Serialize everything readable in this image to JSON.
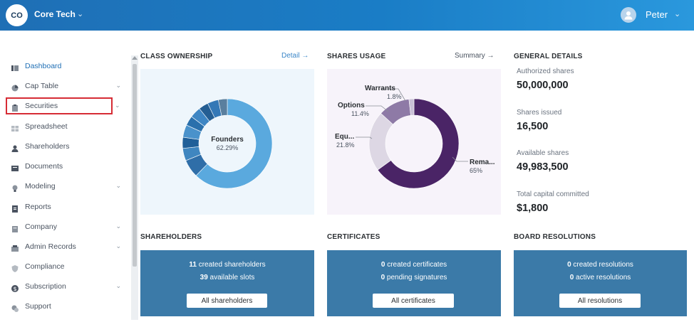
{
  "header": {
    "org_initials": "CO",
    "org_name": "Core Tech",
    "user_name": "Peter"
  },
  "sidebar": {
    "items": [
      {
        "label": "Dashboard",
        "icon": "dashboard-icon"
      },
      {
        "label": "Cap Table",
        "icon": "pie-icon"
      },
      {
        "label": "Securities",
        "icon": "clipboard-icon"
      },
      {
        "label": "Spreadsheet",
        "icon": "table-icon"
      },
      {
        "label": "Shareholders",
        "icon": "person-icon"
      },
      {
        "label": "Documents",
        "icon": "document-icon"
      },
      {
        "label": "Modeling",
        "icon": "bulb-icon"
      },
      {
        "label": "Reports",
        "icon": "report-icon"
      },
      {
        "label": "Company",
        "icon": "building-icon"
      },
      {
        "label": "Admin Records",
        "icon": "records-icon"
      },
      {
        "label": "Compliance",
        "icon": "shield-icon"
      },
      {
        "label": "Subscription",
        "icon": "dollar-icon"
      },
      {
        "label": "Support",
        "icon": "support-icon"
      }
    ]
  },
  "class_ownership": {
    "title": "CLASS OWNERSHIP",
    "link": "Detail →",
    "center_label": "Founders",
    "center_pct": "62.29%"
  },
  "shares_usage": {
    "title": "SHARES USAGE",
    "link": "Summary →",
    "slices": [
      {
        "label": "Warrants",
        "pct": "1.8%"
      },
      {
        "label": "Options",
        "pct": "11.4%"
      },
      {
        "label": "Equ...",
        "pct": "21.8%"
      },
      {
        "label": "Rema...",
        "pct": "65%"
      }
    ]
  },
  "general_details": {
    "title": "GENERAL DETAILS",
    "items": [
      {
        "label": "Authorized shares",
        "value": "50,000,000"
      },
      {
        "label": "Shares issued",
        "value": "16,500"
      },
      {
        "label": "Available shares",
        "value": "49,983,500"
      },
      {
        "label": "Total capital committed",
        "value": "$1,800"
      }
    ]
  },
  "shareholders": {
    "title": "SHAREHOLDERS",
    "line1_num": "11",
    "line1_text": " created shareholders",
    "line2_num": "39",
    "line2_text": " available slots",
    "button": "All shareholders"
  },
  "certificates": {
    "title": "CERTIFICATES",
    "line1_num": "0",
    "line1_text": " created certificates",
    "line2_num": "0",
    "line2_text": " pending signatures",
    "button": "All certificates"
  },
  "board_resolutions": {
    "title": "BOARD RESOLUTIONS",
    "line1_num": "0",
    "line1_text": " created resolutions",
    "line2_num": "0",
    "line2_text": " active resolutions",
    "button": "All resolutions"
  },
  "chart_data": [
    {
      "type": "pie",
      "title": "CLASS OWNERSHIP",
      "labels": [
        "Founders",
        "",
        "",
        "",
        "",
        "",
        "",
        "",
        "",
        ""
      ],
      "values": [
        62.29,
        6.5,
        4.5,
        4.0,
        4.5,
        3.5,
        4.0,
        3.5,
        4.0,
        3.21
      ],
      "colors": [
        "#5aa9de",
        "#2f6ea8",
        "#3f86c0",
        "#1f5f99",
        "#4a92cb",
        "#2a70ac",
        "#3e86c4",
        "#245e93",
        "#3478b6",
        "#5a7f9e"
      ]
    },
    {
      "type": "pie",
      "title": "SHARES USAGE",
      "labels": [
        "Remaining",
        "Equity",
        "Options",
        "Warrants"
      ],
      "values": [
        65,
        21.8,
        11.4,
        1.8
      ],
      "colors": [
        "#4a2466",
        "#ddd7e4",
        "#8e7aa6",
        "#c9bfd6"
      ]
    }
  ]
}
